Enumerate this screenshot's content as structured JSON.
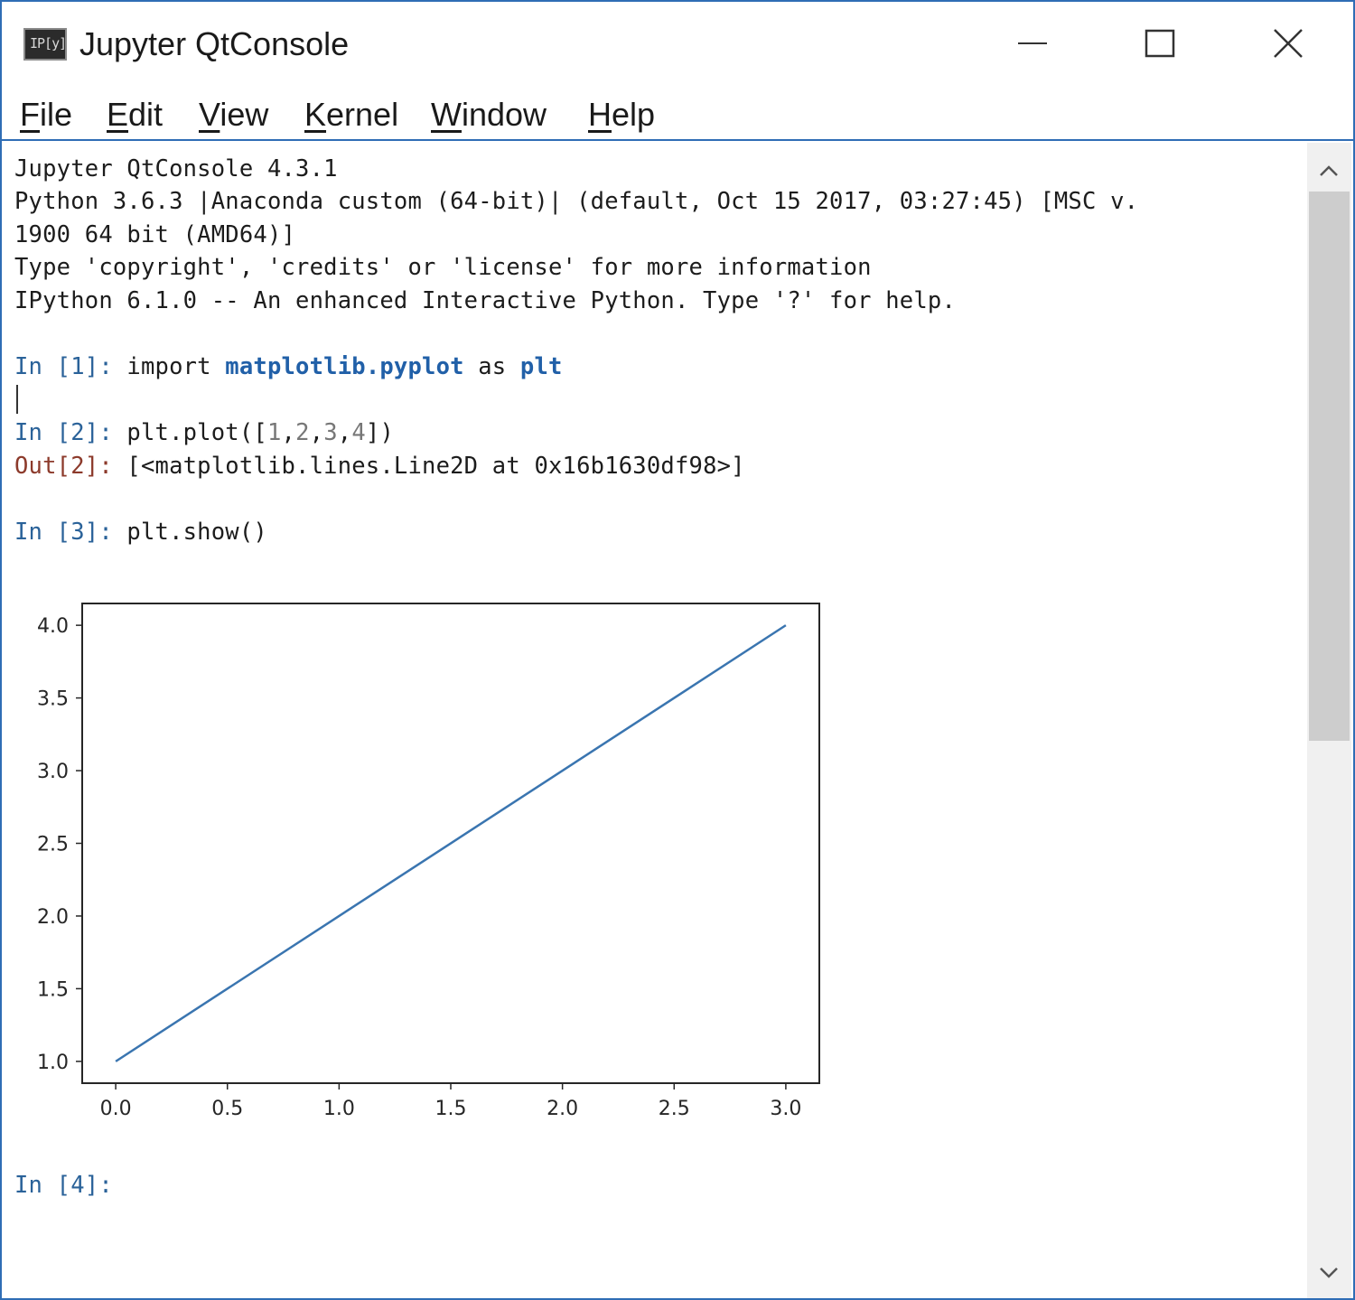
{
  "window": {
    "title": "Jupyter QtConsole",
    "icon_text": "IP[y]",
    "icon": "ipython-icon",
    "accent_color": "#2f6db5"
  },
  "menu": {
    "items": [
      {
        "mnemonic": "F",
        "rest": "ile"
      },
      {
        "mnemonic": "E",
        "rest": "dit"
      },
      {
        "mnemonic": "V",
        "rest": "iew"
      },
      {
        "mnemonic": "K",
        "rest": "ernel"
      },
      {
        "mnemonic": "W",
        "rest": "indow"
      },
      {
        "mnemonic": "H",
        "rest": "elp"
      }
    ]
  },
  "console": {
    "banner": [
      "Jupyter QtConsole 4.3.1",
      "Python 3.6.3 |Anaconda custom (64-bit)| (default, Oct 15 2017, 03:27:45) [MSC v.",
      "1900 64 bit (AMD64)]",
      "Type 'copyright', 'credits' or 'license' for more information",
      "IPython 6.1.0 -- An enhanced Interactive Python. Type '?' for help."
    ],
    "cell1": {
      "prompt": "In [1]: ",
      "kw_import": "import ",
      "module": "matplotlib.pyplot",
      "kw_as": " as ",
      "alias": "plt"
    },
    "cell2": {
      "prompt": "In [2]: ",
      "code_start": "plt.plot([",
      "n1": "1",
      "n2": "2",
      "n3": "3",
      "n4": "4",
      "comma": ",",
      "code_end": "])",
      "out_prompt": "Out[2]: ",
      "output": "[<matplotlib.lines.Line2D at 0x16b1630df98>]"
    },
    "cell3": {
      "prompt": "In [3]: ",
      "code": "plt.show()"
    },
    "cell4": {
      "prompt": "In [4]: "
    }
  },
  "chart_data": {
    "type": "line",
    "x": [
      0,
      1,
      2,
      3
    ],
    "series": [
      {
        "values": [
          1,
          2,
          3,
          4
        ],
        "color": "#3a75b0"
      }
    ],
    "xlim": [
      -0.15,
      3.15
    ],
    "ylim": [
      0.85,
      4.15
    ],
    "xticks": [
      "0.0",
      "0.5",
      "1.0",
      "1.5",
      "2.0",
      "2.5",
      "3.0"
    ],
    "yticks": [
      "1.0",
      "1.5",
      "2.0",
      "2.5",
      "3.0",
      "3.5",
      "4.0"
    ],
    "grid": false,
    "title": "",
    "xlabel": "",
    "ylabel": ""
  },
  "scrollbar": {
    "up_icon": "chevron-up-icon",
    "down_icon": "chevron-down-icon"
  }
}
